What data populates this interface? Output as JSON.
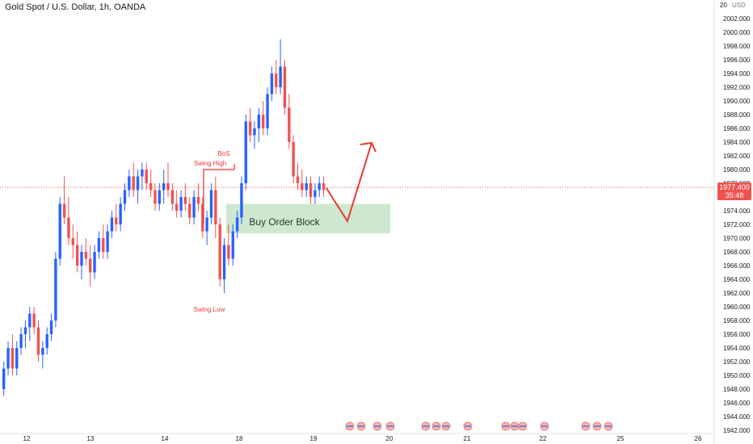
{
  "chart_data": {
    "type": "candlestick",
    "title": "Gold Spot / U.S. Dollar, 1h, OANDA",
    "currency": "USD",
    "y_top_label": "20",
    "ylim": [
      1942,
      2004
    ],
    "y_ticks": [
      1942,
      1944,
      1946,
      1948,
      1950,
      1952,
      1954,
      1956,
      1958,
      1960,
      1962,
      1964,
      1966,
      1968,
      1970,
      1972,
      1974,
      1976,
      1978,
      1980,
      1982,
      1984,
      1986,
      1988,
      1990,
      1992,
      1994,
      1996,
      1998,
      2000,
      2002
    ],
    "y_tick_labels": [
      "1942.000",
      "1944.000",
      "1946.000",
      "1948.000",
      "1950.000",
      "1952.000",
      "1954.000",
      "1956.000",
      "1958.000",
      "1960.000",
      "1962.000",
      "1964.000",
      "1966.000",
      "1968.000",
      "1970.000",
      "1972.000",
      "1974.000",
      "1976.000",
      "1978.000",
      "1980.000",
      "1982.000",
      "1984.000",
      "1986.000",
      "1988.000",
      "1990.000",
      "1992.000",
      "1994.000",
      "1996.000",
      "1998.000",
      "2000.000",
      "2002.000"
    ],
    "x_labels": [
      "12",
      "13",
      "14",
      "18",
      "19",
      "20",
      "21",
      "22",
      "25",
      "26"
    ],
    "current_price": 1977.4,
    "current_price_label": "1977.400",
    "countdown_label": "35:48",
    "colors": {
      "up": "#2962ff",
      "down": "#ef5350",
      "zone": "#c8e6c9",
      "annotation": "#e53935"
    },
    "candles": [
      [
        1948,
        1952,
        1947,
        1951
      ],
      [
        1951,
        1955,
        1950,
        1954
      ],
      [
        1954,
        1956,
        1950,
        1951
      ],
      [
        1951,
        1955,
        1950,
        1954
      ],
      [
        1954,
        1957,
        1953,
        1956
      ],
      [
        1956,
        1958,
        1954,
        1957
      ],
      [
        1957,
        1960,
        1955,
        1959
      ],
      [
        1959,
        1960,
        1956,
        1957
      ],
      [
        1957,
        1958,
        1952,
        1953
      ],
      [
        1953,
        1955,
        1951,
        1954
      ],
      [
        1954,
        1957,
        1953,
        1956
      ],
      [
        1956,
        1959,
        1955,
        1958
      ],
      [
        1958,
        1968,
        1957,
        1967
      ],
      [
        1967,
        1976,
        1966,
        1975
      ],
      [
        1975,
        1979,
        1972,
        1973
      ],
      [
        1973,
        1976,
        1969,
        1970
      ],
      [
        1970,
        1972,
        1967,
        1969
      ],
      [
        1969,
        1971,
        1965,
        1966
      ],
      [
        1966,
        1969,
        1964,
        1968
      ],
      [
        1968,
        1970,
        1966,
        1967
      ],
      [
        1967,
        1969,
        1963,
        1965
      ],
      [
        1965,
        1969,
        1964,
        1968
      ],
      [
        1968,
        1971,
        1967,
        1970
      ],
      [
        1970,
        1972,
        1967,
        1968
      ],
      [
        1968,
        1972,
        1967,
        1971
      ],
      [
        1971,
        1974,
        1970,
        1973
      ],
      [
        1973,
        1975,
        1971,
        1972
      ],
      [
        1972,
        1976,
        1971,
        1975
      ],
      [
        1975,
        1978,
        1974,
        1977
      ],
      [
        1977,
        1980,
        1976,
        1979
      ],
      [
        1979,
        1981,
        1976,
        1977
      ],
      [
        1977,
        1980,
        1975,
        1979
      ],
      [
        1979,
        1981,
        1977,
        1980
      ],
      [
        1980,
        1981,
        1977,
        1978
      ],
      [
        1978,
        1980,
        1976,
        1977
      ],
      [
        1977,
        1978,
        1974,
        1975
      ],
      [
        1975,
        1978,
        1974,
        1977
      ],
      [
        1977,
        1980,
        1975,
        1978
      ],
      [
        1978,
        1981,
        1976,
        1977
      ],
      [
        1977,
        1978,
        1974,
        1975
      ],
      [
        1975,
        1977,
        1973,
        1974
      ],
      [
        1974,
        1977,
        1973,
        1976
      ],
      [
        1976,
        1978,
        1974,
        1975
      ],
      [
        1975,
        1976,
        1972,
        1973
      ],
      [
        1973,
        1977,
        1972,
        1976
      ],
      [
        1976,
        1978,
        1974,
        1975
      ],
      [
        1975,
        1976,
        1970,
        1971
      ],
      [
        1971,
        1974,
        1969,
        1973
      ],
      [
        1973,
        1978,
        1972,
        1977
      ],
      [
        1977,
        1979,
        1970,
        1972
      ],
      [
        1972,
        1973,
        1963,
        1964
      ],
      [
        1964,
        1970,
        1962,
        1969
      ],
      [
        1969,
        1972,
        1966,
        1967
      ],
      [
        1967,
        1972,
        1966,
        1971
      ],
      [
        1971,
        1974,
        1970,
        1973
      ],
      [
        1973,
        1979,
        1972,
        1978
      ],
      [
        1978,
        1988,
        1977,
        1987
      ],
      [
        1987,
        1989,
        1984,
        1985
      ],
      [
        1985,
        1987,
        1983,
        1986
      ],
      [
        1986,
        1989,
        1984,
        1988
      ],
      [
        1988,
        1990,
        1985,
        1986
      ],
      [
        1986,
        1992,
        1985,
        1991
      ],
      [
        1991,
        1995,
        1990,
        1994
      ],
      [
        1994,
        1996,
        1991,
        1992
      ],
      [
        1992,
        1999,
        1991,
        1995
      ],
      [
        1995,
        1996,
        1988,
        1989
      ],
      [
        1989,
        1991,
        1983,
        1984
      ],
      [
        1984,
        1985,
        1978,
        1979
      ],
      [
        1979,
        1981,
        1977,
        1978
      ],
      [
        1978,
        1980,
        1976,
        1977
      ],
      [
        1977,
        1979,
        1976,
        1978
      ],
      [
        1978,
        1979,
        1975,
        1976
      ],
      [
        1976,
        1978,
        1975,
        1977
      ],
      [
        1977,
        1979,
        1976,
        1978
      ],
      [
        1978,
        1979,
        1976,
        1977
      ]
    ],
    "annotations": {
      "bos": "BoS",
      "swing_high": "Swing High",
      "swing_low": "Swing Low",
      "order_block": "Buy Order Block"
    },
    "order_block_range": [
      1970.7,
      1975
    ]
  }
}
